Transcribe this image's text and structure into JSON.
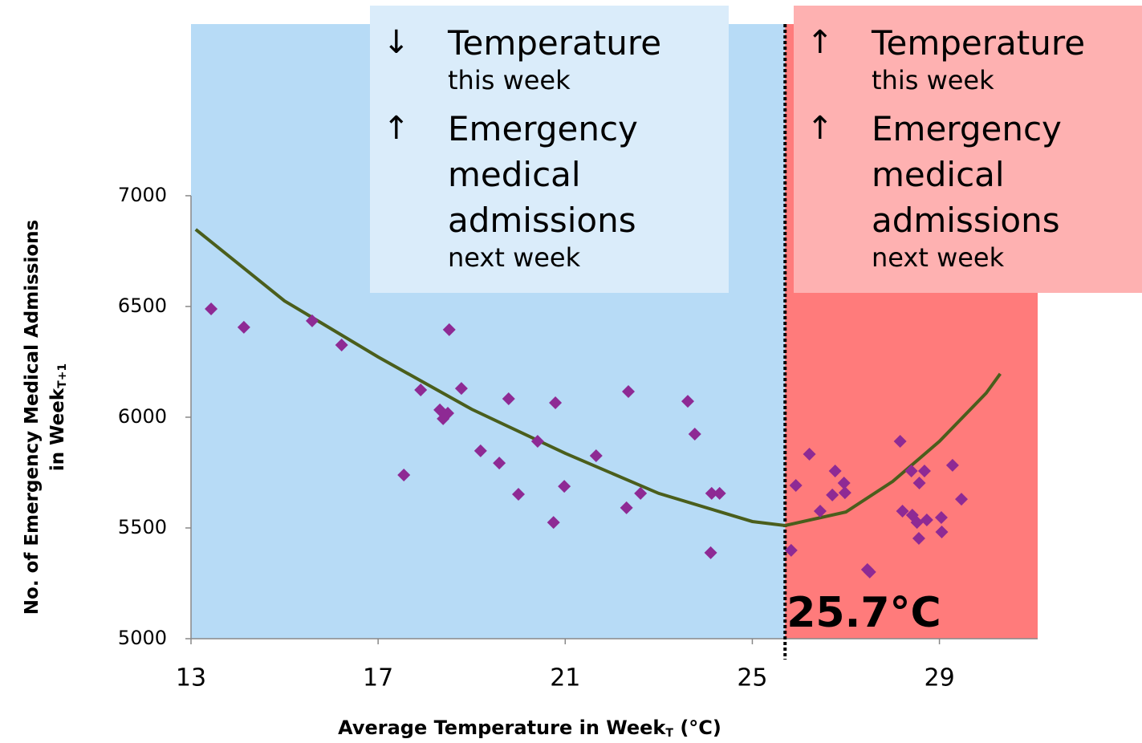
{
  "chart_data": {
    "type": "scatter",
    "x_label": {
      "main": "Average Temperature in Week",
      "sub": "T",
      "unit": " (°C)"
    },
    "y_label": {
      "line1": "No. of Emergency Medical Admissions",
      "line2": "in Week",
      "sub": "T+1"
    },
    "xlim": [
      13,
      31.1
    ],
    "ylim": [
      5000,
      7775
    ],
    "xticks": [
      13,
      17,
      21,
      25,
      29
    ],
    "yticks": [
      5000,
      5500,
      6000,
      6500,
      7000
    ],
    "threshold": {
      "value": 25.7,
      "label": "25.7°C"
    },
    "region_colors": [
      "#b7dbf6",
      "#ff7b7b"
    ],
    "series": [
      {
        "color": "#8e2a94",
        "x": [
          13.43,
          14.13,
          15.59,
          16.22,
          17.55,
          17.91,
          18.52,
          18.78,
          18.32,
          18.39,
          18.49,
          19.19,
          19.59,
          19.79,
          20.0,
          20.41,
          20.79,
          20.75,
          20.98,
          21.66,
          22.35,
          22.31,
          22.61,
          23.62,
          23.77,
          24.13,
          24.11,
          24.3,
          25.83,
          25.93,
          26.22,
          26.45,
          26.71,
          26.77,
          26.96,
          26.98,
          27.46,
          27.51,
          28.16,
          28.21,
          28.4,
          28.42,
          28.57,
          28.52,
          28.56,
          28.68,
          28.73,
          29.04,
          29.05,
          29.28,
          29.47
        ],
        "values": [
          6489,
          6406,
          6435,
          6326,
          5739,
          6123,
          6395,
          6130,
          6033,
          5993,
          6018,
          5848,
          5793,
          6083,
          5652,
          5891,
          6065,
          5525,
          5688,
          5826,
          6116,
          5591,
          5656,
          6072,
          5924,
          5656,
          5388,
          5656,
          5399,
          5692,
          5833,
          5576,
          5649,
          5757,
          5703,
          5659,
          5312,
          5301,
          5891,
          5576,
          5757,
          5558,
          5703,
          5525,
          5453,
          5757,
          5536,
          5547,
          5482,
          5783,
          5630
        ]
      }
    ],
    "trend": {
      "color": "#4a5e1c",
      "x": [
        13.1,
        15,
        17,
        19,
        21,
        23,
        25,
        25.7,
        27,
        28,
        29,
        30,
        30.3
      ],
      "values": [
        6848,
        6525,
        6272,
        6036,
        5837,
        5656,
        5529,
        5511,
        5572,
        5710,
        5891,
        6109,
        6196
      ]
    },
    "panels": [
      {
        "color": "#daecfa",
        "items": [
          {
            "arrow": "↓",
            "title": "Temperature",
            "note": "this week"
          },
          {
            "arrow": "↑",
            "title": "Emergency medical admissions",
            "note": "next week"
          }
        ]
      },
      {
        "color": "#feb1b1",
        "items": [
          {
            "arrow": "↑",
            "title": "Temperature",
            "note": "this week"
          },
          {
            "arrow": "↑",
            "title": "Emergency medical admissions",
            "note": "next week"
          }
        ]
      }
    ]
  }
}
